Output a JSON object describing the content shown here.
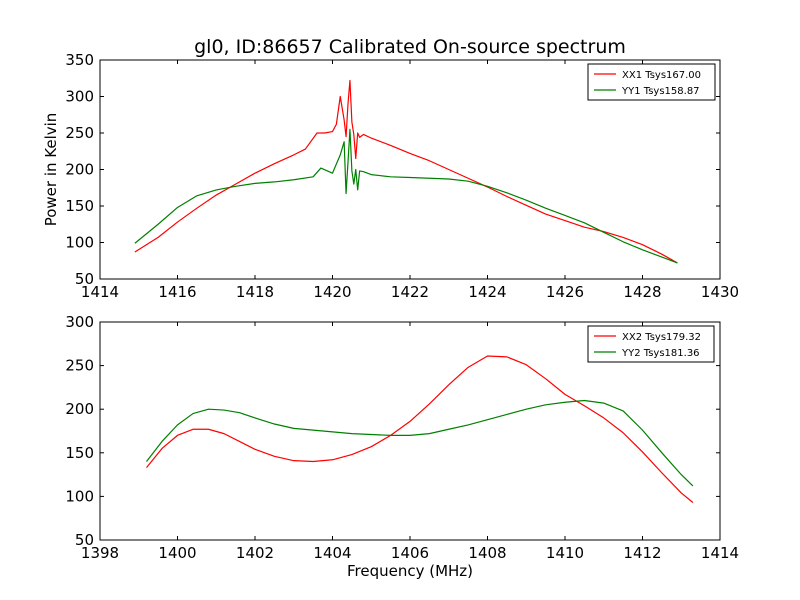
{
  "figure_title": "gl0, ID:86657 Calibrated On-source spectrum",
  "colors": {
    "red": "#ff0000",
    "green": "#008000",
    "frame": "#000000",
    "background": "#ffffff"
  },
  "chart_data": [
    {
      "type": "line",
      "title": "gl0, ID:86657 Calibrated On-source spectrum",
      "xlabel": "",
      "ylabel": "Power in Kelvin",
      "xlim": [
        1414,
        1430
      ],
      "ylim": [
        50,
        350
      ],
      "xticks": [
        1414,
        1416,
        1418,
        1420,
        1422,
        1424,
        1426,
        1428,
        1430
      ],
      "yticks": [
        50,
        100,
        150,
        200,
        250,
        300,
        350
      ],
      "grid": false,
      "legend_position": "top-right",
      "series": [
        {
          "name": "XX1 Tsys167.00",
          "color": "#ff0000",
          "x": [
            1414.9,
            1415.5,
            1416.0,
            1416.5,
            1417.0,
            1417.5,
            1418.0,
            1418.5,
            1419.0,
            1419.3,
            1419.6,
            1419.8,
            1420.0,
            1420.1,
            1420.2,
            1420.3,
            1420.35,
            1420.4,
            1420.45,
            1420.5,
            1420.55,
            1420.6,
            1420.65,
            1420.7,
            1420.8,
            1421.0,
            1421.5,
            1422.0,
            1422.5,
            1423.0,
            1423.5,
            1424.0,
            1424.5,
            1425.0,
            1425.5,
            1426.0,
            1426.5,
            1427.0,
            1427.5,
            1428.0,
            1428.5,
            1428.9
          ],
          "y": [
            87,
            107,
            128,
            147,
            165,
            180,
            195,
            208,
            220,
            228,
            250,
            250,
            252,
            262,
            300,
            268,
            245,
            290,
            322,
            265,
            248,
            215,
            250,
            244,
            248,
            243,
            233,
            222,
            212,
            200,
            188,
            176,
            163,
            151,
            139,
            130,
            121,
            115,
            107,
            97,
            84,
            72
          ]
        },
        {
          "name": "YY1 Tsys158.87",
          "color": "#008000",
          "x": [
            1414.9,
            1415.5,
            1416.0,
            1416.5,
            1417.0,
            1417.5,
            1418.0,
            1418.5,
            1419.0,
            1419.5,
            1419.7,
            1420.0,
            1420.2,
            1420.3,
            1420.35,
            1420.4,
            1420.45,
            1420.5,
            1420.55,
            1420.6,
            1420.65,
            1420.7,
            1420.8,
            1421.0,
            1421.5,
            1422.0,
            1422.5,
            1423.0,
            1423.5,
            1424.0,
            1424.5,
            1425.0,
            1425.5,
            1426.0,
            1426.5,
            1427.0,
            1427.5,
            1428.0,
            1428.5,
            1428.9
          ],
          "y": [
            99,
            125,
            148,
            164,
            172,
            177,
            181,
            183,
            186,
            190,
            202,
            195,
            220,
            238,
            167,
            210,
            255,
            198,
            180,
            200,
            172,
            198,
            197,
            193,
            190,
            189,
            188,
            187,
            184,
            177,
            168,
            158,
            147,
            137,
            127,
            114,
            101,
            90,
            80,
            72
          ]
        }
      ]
    },
    {
      "type": "line",
      "title": "",
      "xlabel": "Frequency (MHz)",
      "ylabel": "",
      "xlim": [
        1398,
        1414
      ],
      "ylim": [
        50,
        300
      ],
      "xticks": [
        1398,
        1400,
        1402,
        1404,
        1406,
        1408,
        1410,
        1412,
        1414
      ],
      "yticks": [
        50,
        100,
        150,
        200,
        250,
        300
      ],
      "grid": false,
      "legend_position": "top-right",
      "series": [
        {
          "name": "XX2 Tsys179.32",
          "color": "#ff0000",
          "x": [
            1399.2,
            1399.6,
            1400.0,
            1400.4,
            1400.8,
            1401.2,
            1401.6,
            1402.0,
            1402.5,
            1403.0,
            1403.5,
            1404.0,
            1404.5,
            1405.0,
            1405.5,
            1406.0,
            1406.5,
            1407.0,
            1407.5,
            1408.0,
            1408.5,
            1409.0,
            1409.5,
            1410.0,
            1410.5,
            1411.0,
            1411.5,
            1412.0,
            1412.5,
            1413.0,
            1413.3
          ],
          "y": [
            133,
            155,
            170,
            177,
            177,
            172,
            163,
            154,
            146,
            141,
            140,
            142,
            148,
            157,
            170,
            186,
            206,
            228,
            248,
            261,
            260,
            251,
            235,
            217,
            204,
            190,
            173,
            151,
            127,
            104,
            93
          ]
        },
        {
          "name": "YY2 Tsys181.36",
          "color": "#008000",
          "x": [
            1399.2,
            1399.6,
            1400.0,
            1400.4,
            1400.8,
            1401.2,
            1401.6,
            1402.0,
            1402.5,
            1403.0,
            1403.5,
            1404.0,
            1404.5,
            1405.0,
            1405.5,
            1406.0,
            1406.5,
            1407.0,
            1407.5,
            1408.0,
            1408.5,
            1409.0,
            1409.5,
            1410.0,
            1410.5,
            1411.0,
            1411.5,
            1412.0,
            1412.5,
            1413.0,
            1413.3
          ],
          "y": [
            140,
            163,
            182,
            195,
            200,
            199,
            196,
            190,
            183,
            178,
            176,
            174,
            172,
            171,
            170,
            170,
            172,
            177,
            182,
            188,
            194,
            200,
            205,
            208,
            210,
            207,
            198,
            176,
            150,
            125,
            112
          ]
        }
      ]
    }
  ]
}
